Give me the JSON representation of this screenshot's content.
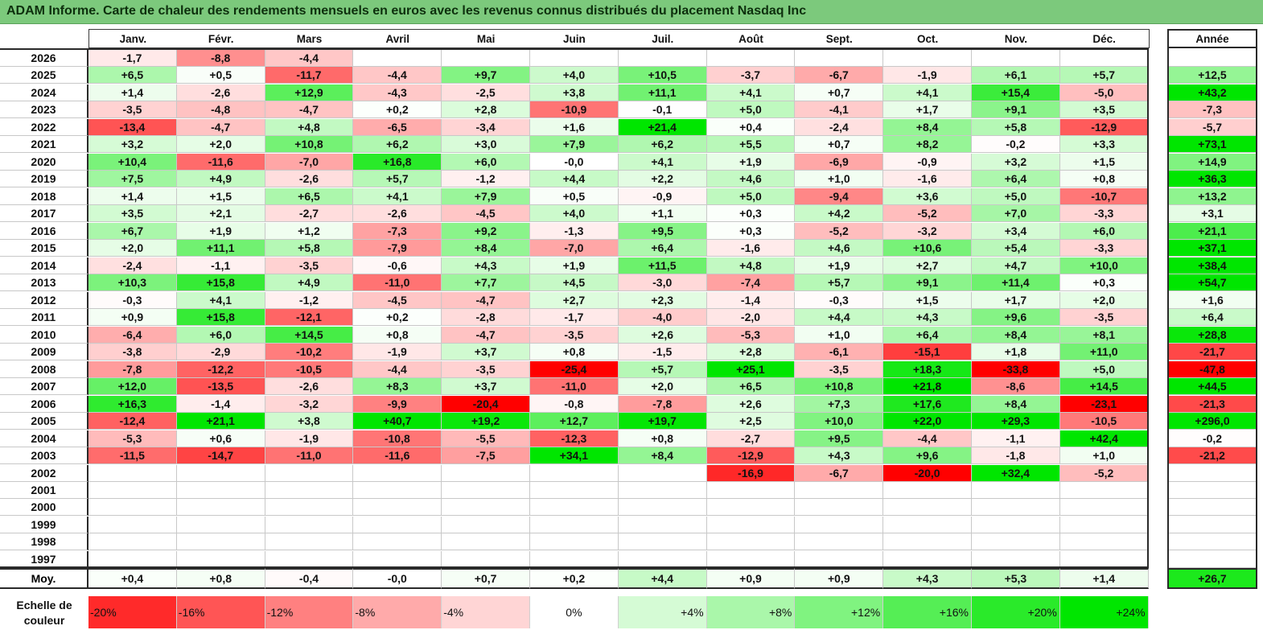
{
  "title": "ADAM Informe. Carte de chaleur des rendements mensuels en euros avec les revenus connus distribués du placement Nasdaq Inc",
  "colors": {
    "title_bg": "#7cc97c",
    "negative_max": "#ff0000",
    "positive_max": "#00e600",
    "neutral": "#ffffff"
  },
  "chart_data": {
    "type": "heatmap",
    "title": "ADAM Informe. Carte de chaleur des rendements mensuels en euros avec les revenus connus distribués du placement Nasdaq Inc",
    "columns": [
      "Janv.",
      "Févr.",
      "Mars",
      "Avril",
      "Mai",
      "Juin",
      "Juil.",
      "Août",
      "Sept.",
      "Oct.",
      "Nov.",
      "Déc."
    ],
    "year_column_label": "Année",
    "rows": [
      {
        "year": "2026",
        "months": [
          "-1,7",
          "-8,8",
          "-4,4",
          "",
          "",
          "",
          "",
          "",
          "",
          "",
          "",
          ""
        ],
        "annual": ""
      },
      {
        "year": "2025",
        "months": [
          "+6,5",
          "+0,5",
          "-11,7",
          "-4,4",
          "+9,7",
          "+4,0",
          "+10,5",
          "-3,7",
          "-6,7",
          "-1,9",
          "+6,1",
          "+5,7"
        ],
        "annual": "+12,5"
      },
      {
        "year": "2024",
        "months": [
          "+1,4",
          "-2,6",
          "+12,9",
          "-4,3",
          "-2,5",
          "+3,8",
          "+11,1",
          "+4,1",
          "+0,7",
          "+4,1",
          "+15,4",
          "-5,0"
        ],
        "annual": "+43,2"
      },
      {
        "year": "2023",
        "months": [
          "-3,5",
          "-4,8",
          "-4,7",
          "+0,2",
          "+2,8",
          "-10,9",
          "-0,1",
          "+5,0",
          "-4,1",
          "+1,7",
          "+9,1",
          "+3,5"
        ],
        "annual": "-7,3"
      },
      {
        "year": "2022",
        "months": [
          "-13,4",
          "-4,7",
          "+4,8",
          "-6,5",
          "-3,4",
          "+1,6",
          "+21,4",
          "+0,4",
          "-2,4",
          "+8,4",
          "+5,8",
          "-12,9"
        ],
        "annual": "-5,7"
      },
      {
        "year": "2021",
        "months": [
          "+3,2",
          "+2,0",
          "+10,8",
          "+6,2",
          "+3,0",
          "+7,9",
          "+6,2",
          "+5,5",
          "+0,7",
          "+8,2",
          "-0,2",
          "+3,3"
        ],
        "annual": "+73,1"
      },
      {
        "year": "2020",
        "months": [
          "+10,4",
          "-11,6",
          "-7,0",
          "+16,8",
          "+6,0",
          "-0,0",
          "+4,1",
          "+1,9",
          "-6,9",
          "-0,9",
          "+3,2",
          "+1,5"
        ],
        "annual": "+14,9"
      },
      {
        "year": "2019",
        "months": [
          "+7,5",
          "+4,9",
          "-2,6",
          "+5,7",
          "-1,2",
          "+4,4",
          "+2,2",
          "+4,6",
          "+1,0",
          "-1,6",
          "+6,4",
          "+0,8"
        ],
        "annual": "+36,3"
      },
      {
        "year": "2018",
        "months": [
          "+1,4",
          "+1,5",
          "+6,5",
          "+4,1",
          "+7,9",
          "+0,5",
          "-0,9",
          "+5,0",
          "-9,4",
          "+3,6",
          "+5,0",
          "-10,7"
        ],
        "annual": "+13,2"
      },
      {
        "year": "2017",
        "months": [
          "+3,5",
          "+2,1",
          "-2,7",
          "-2,6",
          "-4,5",
          "+4,0",
          "+1,1",
          "+0,3",
          "+4,2",
          "-5,2",
          "+7,0",
          "-3,3"
        ],
        "annual": "+3,1"
      },
      {
        "year": "2016",
        "months": [
          "+6,7",
          "+1,9",
          "+1,2",
          "-7,3",
          "+9,2",
          "-1,3",
          "+9,5",
          "+0,3",
          "-5,2",
          "-3,2",
          "+3,4",
          "+6,0"
        ],
        "annual": "+21,1"
      },
      {
        "year": "2015",
        "months": [
          "+2,0",
          "+11,1",
          "+5,8",
          "-7,9",
          "+8,4",
          "-7,0",
          "+6,4",
          "-1,6",
          "+4,6",
          "+10,6",
          "+5,4",
          "-3,3"
        ],
        "annual": "+37,1"
      },
      {
        "year": "2014",
        "months": [
          "-2,4",
          "-1,1",
          "-3,5",
          "-0,6",
          "+4,3",
          "+1,9",
          "+11,5",
          "+4,8",
          "+1,9",
          "+2,7",
          "+4,7",
          "+10,0"
        ],
        "annual": "+38,4"
      },
      {
        "year": "2013",
        "months": [
          "+10,3",
          "+15,8",
          "+4,9",
          "-11,0",
          "+7,7",
          "+4,5",
          "-3,0",
          "-7,4",
          "+5,7",
          "+9,1",
          "+11,4",
          "+0,3"
        ],
        "annual": "+54,7"
      },
      {
        "year": "2012",
        "months": [
          "-0,3",
          "+4,1",
          "-1,2",
          "-4,5",
          "-4,7",
          "+2,7",
          "+2,3",
          "-1,4",
          "-0,3",
          "+1,5",
          "+1,7",
          "+2,0"
        ],
        "annual": "+1,6"
      },
      {
        "year": "2011",
        "months": [
          "+0,9",
          "+15,8",
          "-12,1",
          "+0,2",
          "-2,8",
          "-1,7",
          "-4,0",
          "-2,0",
          "+4,4",
          "+4,3",
          "+9,6",
          "-3,5"
        ],
        "annual": "+6,4"
      },
      {
        "year": "2010",
        "months": [
          "-6,4",
          "+6,0",
          "+14,5",
          "+0,8",
          "-4,7",
          "-3,5",
          "+2,6",
          "-5,3",
          "+1,0",
          "+6,4",
          "+8,4",
          "+8,1"
        ],
        "annual": "+28,8"
      },
      {
        "year": "2009",
        "months": [
          "-3,8",
          "-2,9",
          "-10,2",
          "-1,9",
          "+3,7",
          "+0,8",
          "-1,5",
          "+2,8",
          "-6,1",
          "-15,1",
          "+1,8",
          "+11,0"
        ],
        "annual": "-21,7"
      },
      {
        "year": "2008",
        "months": [
          "-7,8",
          "-12,2",
          "-10,5",
          "-4,4",
          "-3,5",
          "-25,4",
          "+5,7",
          "+25,1",
          "-3,5",
          "+18,3",
          "-33,8",
          "+5,0"
        ],
        "annual": "-47,8"
      },
      {
        "year": "2007",
        "months": [
          "+12,0",
          "-13,5",
          "-2,6",
          "+8,3",
          "+3,7",
          "-11,0",
          "+2,0",
          "+6,5",
          "+10,8",
          "+21,8",
          "-8,6",
          "+14,5"
        ],
        "annual": "+44,5"
      },
      {
        "year": "2006",
        "months": [
          "+16,3",
          "-1,4",
          "-3,2",
          "-9,9",
          "-20,4",
          "-0,8",
          "-7,8",
          "+2,6",
          "+7,3",
          "+17,6",
          "+8,4",
          "-23,1"
        ],
        "annual": "-21,3"
      },
      {
        "year": "2005",
        "months": [
          "-12,4",
          "+21,1",
          "+3,8",
          "+40,7",
          "+19,2",
          "+12,7",
          "+19,7",
          "+2,5",
          "+10,0",
          "+22,0",
          "+29,3",
          "-10,5"
        ],
        "annual": "+296,0"
      },
      {
        "year": "2004",
        "months": [
          "-5,3",
          "+0,6",
          "-1,9",
          "-10,8",
          "-5,5",
          "-12,3",
          "+0,8",
          "-2,7",
          "+9,5",
          "-4,4",
          "-1,1",
          "+42,4"
        ],
        "annual": "-0,2"
      },
      {
        "year": "2003",
        "months": [
          "-11,5",
          "-14,7",
          "-11,0",
          "-11,6",
          "-7,5",
          "+34,1",
          "+8,4",
          "-12,9",
          "+4,3",
          "+9,6",
          "-1,8",
          "+1,0"
        ],
        "annual": "-21,2"
      },
      {
        "year": "2002",
        "months": [
          "",
          "",
          "",
          "",
          "",
          "",
          "",
          "-16,9",
          "-6,7",
          "-20,0",
          "+32,4",
          "-5,2"
        ],
        "annual": ""
      },
      {
        "year": "2001",
        "months": [
          "",
          "",
          "",
          "",
          "",
          "",
          "",
          "",
          "",
          "",
          "",
          ""
        ],
        "annual": ""
      },
      {
        "year": "2000",
        "months": [
          "",
          "",
          "",
          "",
          "",
          "",
          "",
          "",
          "",
          "",
          "",
          ""
        ],
        "annual": ""
      },
      {
        "year": "1999",
        "months": [
          "",
          "",
          "",
          "",
          "",
          "",
          "",
          "",
          "",
          "",
          "",
          ""
        ],
        "annual": ""
      },
      {
        "year": "1998",
        "months": [
          "",
          "",
          "",
          "",
          "",
          "",
          "",
          "",
          "",
          "",
          "",
          ""
        ],
        "annual": ""
      },
      {
        "year": "1997",
        "months": [
          "",
          "",
          "",
          "",
          "",
          "",
          "",
          "",
          "",
          "",
          "",
          ""
        ],
        "annual": ""
      }
    ],
    "average": {
      "label": "Moy.",
      "months": [
        "+0,4",
        "+0,8",
        "-0,4",
        "-0,0",
        "+0,7",
        "+0,2",
        "+4,4",
        "+0,9",
        "+0,9",
        "+4,3",
        "+5,3",
        "+1,4"
      ],
      "annual": "+26,7"
    },
    "color_scale": {
      "label_line1": "Echelle de",
      "label_line2": "couleur",
      "steps": [
        {
          "label": "-20%",
          "value": -20
        },
        {
          "label": "-16%",
          "value": -16
        },
        {
          "label": "-12%",
          "value": -12
        },
        {
          "label": "-8%",
          "value": -8
        },
        {
          "label": "-4%",
          "value": -4
        },
        {
          "label": "0%",
          "value": 0
        },
        {
          "label": "+4%",
          "value": 4
        },
        {
          "label": "+8%",
          "value": 8
        },
        {
          "label": "+12%",
          "value": 12
        },
        {
          "label": "+16%",
          "value": 16
        },
        {
          "label": "+20%",
          "value": 20
        },
        {
          "label": "+24%",
          "value": 24
        }
      ]
    }
  }
}
